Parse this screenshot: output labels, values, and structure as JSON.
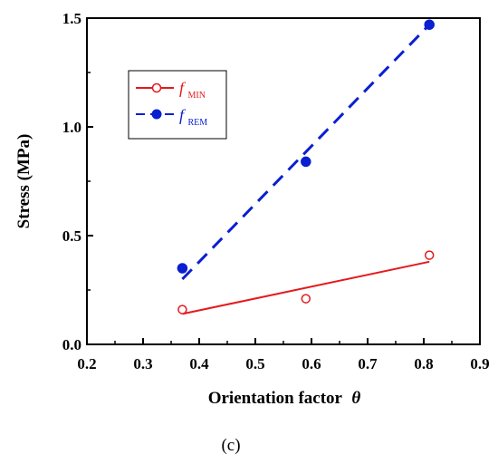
{
  "chart_data": {
    "type": "scatter",
    "xlabel": "Orientation factor",
    "xlabel_symbol": "θ",
    "ylabel": "Stress (MPa)",
    "xlim": [
      0.2,
      0.9
    ],
    "ylim": [
      0.0,
      1.5
    ],
    "x_ticks": [
      "0.2",
      "0.3",
      "0.4",
      "0.5",
      "0.6",
      "0.7",
      "0.8",
      "0.9"
    ],
    "y_ticks": [
      "0.0",
      "0.5",
      "1.0",
      "1.5"
    ],
    "grid": false,
    "legend_position": "upper-left",
    "series": [
      {
        "name": "f_MIN",
        "label_main": "f",
        "label_sub": "MIN",
        "color": "#e41a1c",
        "marker": "open-circle",
        "line_style": "solid",
        "x": [
          0.37,
          0.59,
          0.81
        ],
        "y": [
          0.16,
          0.21,
          0.41
        ],
        "fit": [
          [
            0.37,
            0.14
          ],
          [
            0.81,
            0.38
          ]
        ]
      },
      {
        "name": "f_REM",
        "label_main": "f",
        "label_sub": "REM",
        "color": "#0a1fd1",
        "marker": "filled-circle",
        "line_style": "dashed",
        "x": [
          0.37,
          0.59,
          0.81
        ],
        "y": [
          0.35,
          0.84,
          1.47
        ],
        "fit": [
          [
            0.37,
            0.3
          ],
          [
            0.81,
            1.47
          ]
        ]
      }
    ]
  },
  "caption": "(c)"
}
